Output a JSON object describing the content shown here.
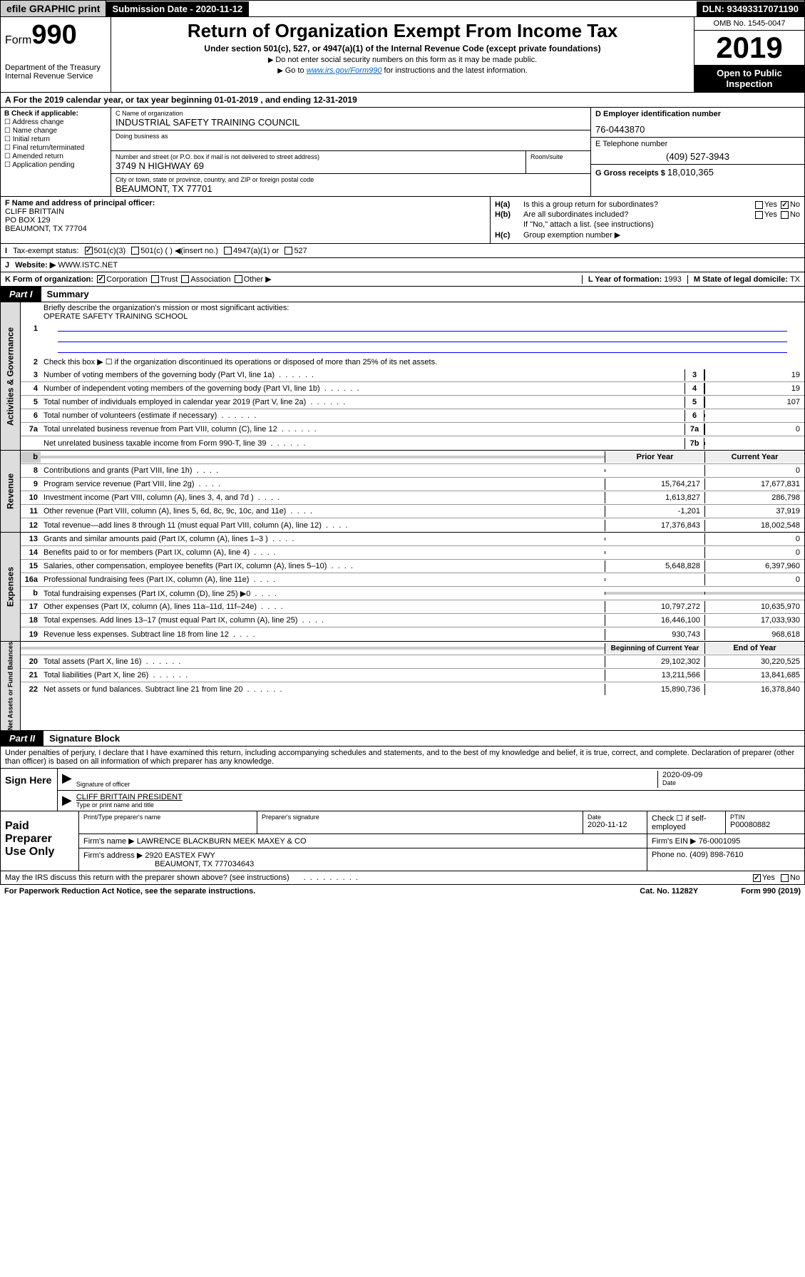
{
  "top_bar": {
    "efile": "efile GRAPHIC print",
    "submission_label": "Submission Date - 2020-11-12",
    "dln": "DLN: 93493317071190"
  },
  "header": {
    "form_prefix": "Form",
    "form_number": "990",
    "dept": "Department of the Treasury",
    "irs": "Internal Revenue Service",
    "title": "Return of Organization Exempt From Income Tax",
    "subtitle": "Under section 501(c), 527, or 4947(a)(1) of the Internal Revenue Code (except private foundations)",
    "instr1": "Do not enter social security numbers on this form as it may be made public.",
    "instr2_prefix": "Go to ",
    "instr2_link": "www.irs.gov/Form990",
    "instr2_suffix": " for instructions and the latest information.",
    "omb": "OMB No. 1545-0047",
    "year": "2019",
    "inspection": "Open to Public Inspection"
  },
  "tax_year": "For the 2019 calendar year, or tax year beginning 01-01-2019  , and ending 12-31-2019",
  "section_b": {
    "label": "B Check if applicable:",
    "opts": [
      "Address change",
      "Name change",
      "Initial return",
      "Final return/terminated",
      "Amended return",
      "Application pending"
    ]
  },
  "section_c": {
    "name_label": "C Name of organization",
    "name": "INDUSTRIAL SAFETY TRAINING COUNCIL",
    "dba_label": "Doing business as",
    "addr_label": "Number and street (or P.O. box if mail is not delivered to street address)",
    "room_label": "Room/suite",
    "addr": "3749 N HIGHWAY 69",
    "city_label": "City or town, state or province, country, and ZIP or foreign postal code",
    "city": "BEAUMONT, TX  77701"
  },
  "section_d": {
    "label": "D Employer identification number",
    "ein": "76-0443870"
  },
  "section_e": {
    "label": "E Telephone number",
    "phone": "(409) 527-3943"
  },
  "section_g": {
    "label": "G Gross receipts $ ",
    "amount": "18,010,365"
  },
  "section_f": {
    "label": "F Name and address of principal officer:",
    "name": "CLIFF BRITTAIN",
    "addr1": "PO BOX 129",
    "addr2": "BEAUMONT, TX  77704"
  },
  "section_h": {
    "ha": "Is this a group return for subordinates?",
    "hb": "Are all subordinates included?",
    "hb_note": "If \"No,\" attach a list. (see instructions)",
    "hc": "Group exemption number ▶"
  },
  "section_i": {
    "label": "Tax-exempt status:",
    "opts": [
      "501(c)(3)",
      "501(c) (  ) ◀(insert no.)",
      "4947(a)(1) or",
      "527"
    ]
  },
  "section_j": {
    "label": "Website: ▶",
    "value": "WWW.ISTC.NET"
  },
  "section_k": {
    "label": "K Form of organization:",
    "opts": [
      "Corporation",
      "Trust",
      "Association",
      "Other ▶"
    ]
  },
  "section_l": {
    "label": "L Year of formation: ",
    "value": "1993"
  },
  "section_m": {
    "label": "M State of legal domicile: ",
    "value": "TX"
  },
  "part1": {
    "label": "Part I",
    "title": "Summary",
    "side_gov": "Activities & Governance",
    "side_rev": "Revenue",
    "side_exp": "Expenses",
    "side_net": "Net Assets or Fund Balances",
    "line1_desc": "Briefly describe the organization's mission or most significant activities:",
    "mission": "OPERATE SAFETY TRAINING SCHOOL",
    "line2_desc": "Check this box ▶ ☐ if the organization discontinued its operations or disposed of more than 25% of its net assets.",
    "lines_gov": [
      {
        "num": "3",
        "desc": "Number of voting members of the governing body (Part VI, line 1a)",
        "box": "3",
        "val": "19"
      },
      {
        "num": "4",
        "desc": "Number of independent voting members of the governing body (Part VI, line 1b)",
        "box": "4",
        "val": "19"
      },
      {
        "num": "5",
        "desc": "Total number of individuals employed in calendar year 2019 (Part V, line 2a)",
        "box": "5",
        "val": "107"
      },
      {
        "num": "6",
        "desc": "Total number of volunteers (estimate if necessary)",
        "box": "6",
        "val": ""
      },
      {
        "num": "7a",
        "desc": "Total unrelated business revenue from Part VIII, column (C), line 12",
        "box": "7a",
        "val": "0"
      },
      {
        "num": "",
        "desc": "Net unrelated business taxable income from Form 990-T, line 39",
        "box": "7b",
        "val": ""
      }
    ],
    "prior_label": "Prior Year",
    "current_label": "Current Year",
    "lines_rev": [
      {
        "num": "8",
        "desc": "Contributions and grants (Part VIII, line 1h)",
        "prior": "",
        "cur": "0"
      },
      {
        "num": "9",
        "desc": "Program service revenue (Part VIII, line 2g)",
        "prior": "15,764,217",
        "cur": "17,677,831"
      },
      {
        "num": "10",
        "desc": "Investment income (Part VIII, column (A), lines 3, 4, and 7d )",
        "prior": "1,613,827",
        "cur": "286,798"
      },
      {
        "num": "11",
        "desc": "Other revenue (Part VIII, column (A), lines 5, 6d, 8c, 9c, 10c, and 11e)",
        "prior": "-1,201",
        "cur": "37,919"
      },
      {
        "num": "12",
        "desc": "Total revenue—add lines 8 through 11 (must equal Part VIII, column (A), line 12)",
        "prior": "17,376,843",
        "cur": "18,002,548"
      }
    ],
    "lines_exp": [
      {
        "num": "13",
        "desc": "Grants and similar amounts paid (Part IX, column (A), lines 1–3 )",
        "prior": "",
        "cur": "0"
      },
      {
        "num": "14",
        "desc": "Benefits paid to or for members (Part IX, column (A), line 4)",
        "prior": "",
        "cur": "0"
      },
      {
        "num": "15",
        "desc": "Salaries, other compensation, employee benefits (Part IX, column (A), lines 5–10)",
        "prior": "5,648,828",
        "cur": "6,397,960"
      },
      {
        "num": "16a",
        "desc": "Professional fundraising fees (Part IX, column (A), line 11e)",
        "prior": "",
        "cur": "0"
      },
      {
        "num": "b",
        "desc": "Total fundraising expenses (Part IX, column (D), line 25) ▶0",
        "prior": "shaded",
        "cur": "shaded"
      },
      {
        "num": "17",
        "desc": "Other expenses (Part IX, column (A), lines 11a–11d, 11f–24e)",
        "prior": "10,797,272",
        "cur": "10,635,970"
      },
      {
        "num": "18",
        "desc": "Total expenses. Add lines 13–17 (must equal Part IX, column (A), line 25)",
        "prior": "16,446,100",
        "cur": "17,033,930"
      },
      {
        "num": "19",
        "desc": "Revenue less expenses. Subtract line 18 from line 12",
        "prior": "930,743",
        "cur": "968,618"
      }
    ],
    "begin_label": "Beginning of Current Year",
    "end_label": "End of Year",
    "lines_net": [
      {
        "num": "20",
        "desc": "Total assets (Part X, line 16)",
        "prior": "29,102,302",
        "cur": "30,220,525"
      },
      {
        "num": "21",
        "desc": "Total liabilities (Part X, line 26)",
        "prior": "13,211,566",
        "cur": "13,841,685"
      },
      {
        "num": "22",
        "desc": "Net assets or fund balances. Subtract line 21 from line 20",
        "prior": "15,890,736",
        "cur": "16,378,840"
      }
    ]
  },
  "part2": {
    "label": "Part II",
    "title": "Signature Block",
    "perjury": "Under penalties of perjury, I declare that I have examined this return, including accompanying schedules and statements, and to the best of my knowledge and belief, it is true, correct, and complete. Declaration of preparer (other than officer) is based on all information of which preparer has any knowledge."
  },
  "sign": {
    "label": "Sign Here",
    "sig_label": "Signature of officer",
    "date": "2020-09-09",
    "date_label": "Date",
    "name": "CLIFF BRITTAIN  PRESIDENT",
    "name_label": "Type or print name and title"
  },
  "prep": {
    "label": "Paid Preparer Use Only",
    "col1": "Print/Type preparer's name",
    "col2": "Preparer's signature",
    "col3_label": "Date",
    "col3": "2020-11-12",
    "col4": "Check ☐ if self-employed",
    "col5_label": "PTIN",
    "col5": "P00080882",
    "firm_name_label": "Firm's name    ▶",
    "firm_name": "LAWRENCE BLACKBURN MEEK MAXEY & CO",
    "firm_ein_label": "Firm's EIN ▶",
    "firm_ein": "76-0001095",
    "firm_addr_label": "Firm's address ▶",
    "firm_addr1": "2920 EASTEX FWY",
    "firm_addr2": "BEAUMONT, TX  777034643",
    "phone_label": "Phone no. ",
    "phone": "(409) 898-7610"
  },
  "footer": {
    "discuss": "May the IRS discuss this return with the preparer shown above? (see instructions)",
    "paperwork": "For Paperwork Reduction Act Notice, see the separate instructions.",
    "cat": "Cat. No. 11282Y",
    "form": "Form 990 (2019)"
  }
}
